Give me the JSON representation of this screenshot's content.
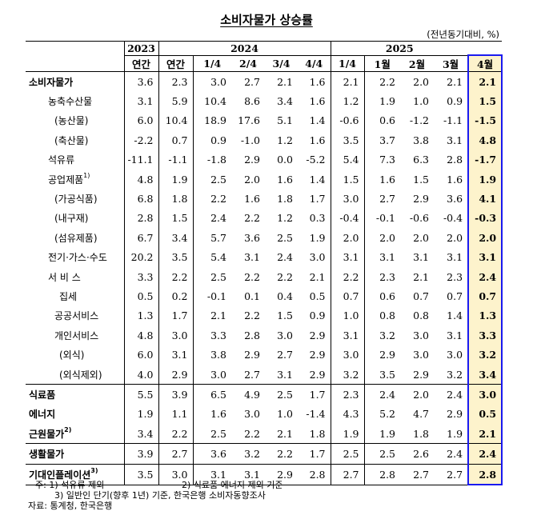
{
  "title": "소비자물가 상승률",
  "unit": "(전년동기대비, %)",
  "header": {
    "years": [
      "2023",
      "2024",
      "2025"
    ],
    "columns": [
      "연간",
      "연간",
      "1/4",
      "2/4",
      "3/4",
      "4/4",
      "1/4",
      "1월",
      "2월",
      "3월",
      "4월"
    ]
  },
  "rows": [
    {
      "label": "소비자물가",
      "sup": "",
      "values": [
        "3.6",
        "2.3",
        "3.0",
        "2.7",
        "2.1",
        "1.6",
        "2.1",
        "2.2",
        "2.0",
        "2.1",
        "2.1"
      ]
    },
    {
      "label": "농축수산물",
      "sup": "",
      "values": [
        "3.1",
        "5.9",
        "10.4",
        "8.6",
        "3.4",
        "1.6",
        "1.2",
        "1.9",
        "1.0",
        "0.9",
        "1.5"
      ]
    },
    {
      "label": "(농산물)",
      "sup": "",
      "values": [
        "6.0",
        "10.4",
        "18.9",
        "17.6",
        "5.1",
        "1.4",
        "-0.6",
        "0.6",
        "-1.2",
        "-1.1",
        "-1.5"
      ]
    },
    {
      "label": "(축산물)",
      "sup": "",
      "values": [
        "-2.2",
        "0.7",
        "0.9",
        "-1.0",
        "1.2",
        "1.6",
        "3.5",
        "3.7",
        "3.8",
        "3.1",
        "4.8"
      ]
    },
    {
      "label": "석유류",
      "sup": "",
      "values": [
        "-11.1",
        "-1.1",
        "-1.8",
        "2.9",
        "0.0",
        "-5.2",
        "5.4",
        "7.3",
        "6.3",
        "2.8",
        "-1.7"
      ]
    },
    {
      "label": "공업제품",
      "sup": "1)",
      "values": [
        "4.8",
        "1.9",
        "2.5",
        "2.0",
        "1.6",
        "1.4",
        "1.5",
        "1.6",
        "1.5",
        "1.6",
        "1.9"
      ]
    },
    {
      "label": "(가공식품)",
      "sup": "",
      "values": [
        "6.8",
        "1.8",
        "2.2",
        "1.6",
        "1.8",
        "1.7",
        "3.0",
        "2.7",
        "2.9",
        "3.6",
        "4.1"
      ]
    },
    {
      "label": "(내구재)",
      "sup": "",
      "values": [
        "2.8",
        "1.5",
        "2.4",
        "2.2",
        "1.2",
        "0.3",
        "-0.4",
        "-0.1",
        "-0.6",
        "-0.4",
        "-0.3"
      ]
    },
    {
      "label": "(섬유제품)",
      "sup": "",
      "values": [
        "6.7",
        "3.4",
        "5.7",
        "3.6",
        "2.5",
        "1.9",
        "2.0",
        "2.0",
        "2.0",
        "2.0",
        "2.0"
      ]
    },
    {
      "label": "전기·가스·수도",
      "sup": "",
      "values": [
        "20.2",
        "3.5",
        "5.4",
        "3.1",
        "2.4",
        "3.0",
        "3.1",
        "3.1",
        "3.1",
        "3.1",
        "3.1"
      ]
    },
    {
      "label": "서 비 스",
      "sup": "",
      "values": [
        "3.3",
        "2.2",
        "2.5",
        "2.2",
        "2.2",
        "2.1",
        "2.2",
        "2.3",
        "2.1",
        "2.3",
        "2.4"
      ]
    },
    {
      "label": "집세",
      "sup": "",
      "values": [
        "0.5",
        "0.2",
        "-0.1",
        "0.1",
        "0.4",
        "0.5",
        "0.7",
        "0.6",
        "0.7",
        "0.7",
        "0.7"
      ]
    },
    {
      "label": "공공서비스",
      "sup": "",
      "values": [
        "1.3",
        "1.7",
        "2.1",
        "2.2",
        "1.5",
        "0.9",
        "1.0",
        "0.8",
        "0.8",
        "1.4",
        "1.3"
      ]
    },
    {
      "label": "개인서비스",
      "sup": "",
      "values": [
        "4.8",
        "3.0",
        "3.3",
        "2.8",
        "3.0",
        "2.9",
        "3.1",
        "3.2",
        "3.0",
        "3.1",
        "3.3"
      ]
    },
    {
      "label": "(외식)",
      "sup": "",
      "values": [
        "6.0",
        "3.1",
        "3.8",
        "2.9",
        "2.7",
        "2.9",
        "3.0",
        "2.9",
        "3.0",
        "3.0",
        "3.2"
      ]
    },
    {
      "label": "(외식제외)",
      "sup": "",
      "values": [
        "4.0",
        "2.9",
        "3.0",
        "2.7",
        "3.1",
        "2.9",
        "3.2",
        "3.5",
        "2.9",
        "3.2",
        "3.4"
      ]
    },
    {
      "label": "식료품",
      "sup": "",
      "values": [
        "5.5",
        "3.9",
        "6.5",
        "4.9",
        "2.5",
        "1.7",
        "2.3",
        "2.4",
        "2.0",
        "2.4",
        "3.0"
      ]
    },
    {
      "label": "에너지",
      "sup": "",
      "values": [
        "1.9",
        "1.1",
        "1.6",
        "3.0",
        "1.0",
        "-1.4",
        "4.3",
        "5.2",
        "4.7",
        "2.9",
        "0.5"
      ]
    },
    {
      "label": "근원물가",
      "sup": "2)",
      "values": [
        "3.4",
        "2.2",
        "2.5",
        "2.2",
        "2.1",
        "1.8",
        "1.9",
        "1.9",
        "1.8",
        "1.9",
        "2.1"
      ]
    },
    {
      "label": "생활물가",
      "sup": "",
      "values": [
        "3.9",
        "2.7",
        "3.6",
        "3.2",
        "2.2",
        "1.7",
        "2.5",
        "2.5",
        "2.6",
        "2.4",
        "2.4"
      ]
    },
    {
      "label": "기대인플레이션",
      "sup": "3)",
      "values": [
        "3.5",
        "3.0",
        "3.1",
        "3.1",
        "2.9",
        "2.8",
        "2.7",
        "2.8",
        "2.7",
        "2.7",
        "2.8"
      ]
    }
  ],
  "notes": {
    "prefix": "주: ",
    "note1": "1) 석유류 제외",
    "note2": "2) 식료품·에너지 제외 기준",
    "note3": "3) 일반인 단기(향후 1년) 기준, 한국은행 소비자동향조사",
    "source": "자료: 통계청, 한국은행"
  },
  "colors": {
    "highlight_fill": "#fdf3cc",
    "highlight_border": "#1a1af0"
  }
}
